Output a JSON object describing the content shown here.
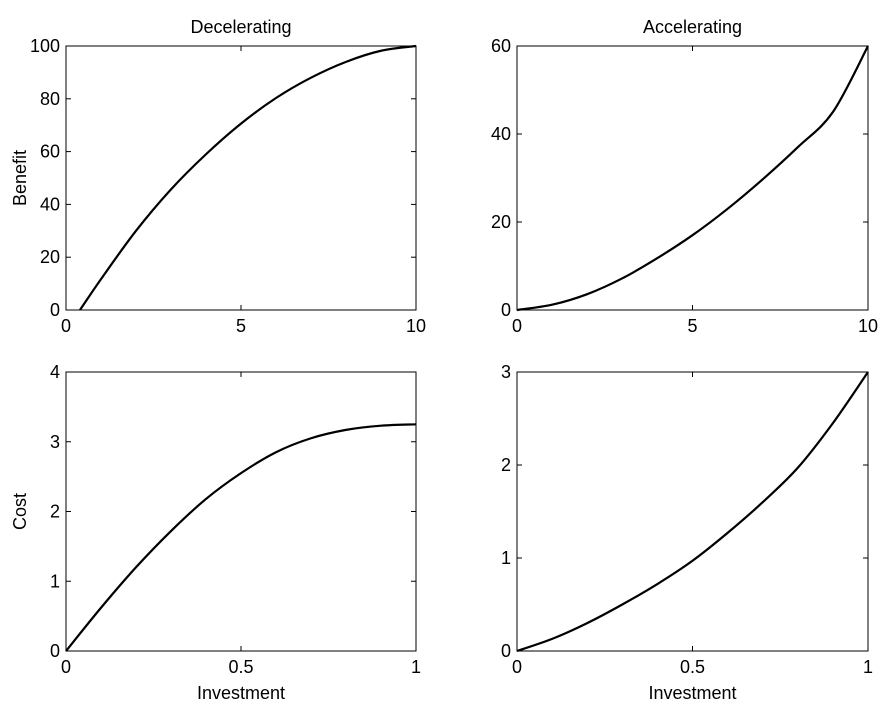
{
  "figure": {
    "background": "#ffffff",
    "line_color": "#000000"
  },
  "chart_data": [
    {
      "type": "line",
      "title": "Decelerating",
      "xlabel": "",
      "ylabel": "Benefit",
      "xlim": [
        0,
        10
      ],
      "ylim": [
        0,
        100
      ],
      "xticks": [
        0,
        5,
        10
      ],
      "xtick_labels": [
        "0",
        "5",
        "10"
      ],
      "yticks": [
        0,
        20,
        40,
        60,
        80,
        100
      ],
      "ytick_labels": [
        "0",
        "20",
        "40",
        "60",
        "80",
        "100"
      ],
      "grid": false,
      "series": [
        {
          "x": [
            0.4,
            1,
            2,
            3,
            4,
            5,
            6,
            7,
            8,
            9,
            10
          ],
          "y": [
            0,
            11.7,
            30,
            45.7,
            59,
            70.6,
            80.3,
            88,
            94,
            98.2,
            100
          ]
        }
      ]
    },
    {
      "type": "line",
      "title": "Accelerating",
      "xlabel": "",
      "ylabel": "",
      "xlim": [
        0,
        10
      ],
      "ylim": [
        0,
        60
      ],
      "xticks": [
        0,
        5,
        10
      ],
      "xtick_labels": [
        "0",
        "5",
        "10"
      ],
      "yticks": [
        0,
        20,
        40,
        60
      ],
      "ytick_labels": [
        "0",
        "20",
        "40",
        "60"
      ],
      "grid": false,
      "series": [
        {
          "x": [
            0,
            1,
            2,
            3,
            4,
            5,
            6,
            7,
            8,
            9,
            10
          ],
          "y": [
            0,
            1.2,
            3.6,
            7.2,
            11.8,
            17,
            23,
            29.7,
            37,
            45,
            60
          ]
        }
      ]
    },
    {
      "type": "line",
      "title": "",
      "xlabel": "Investment",
      "ylabel": "Cost",
      "xlim": [
        0,
        1
      ],
      "ylim": [
        0,
        4
      ],
      "xticks": [
        0,
        0.5,
        1
      ],
      "xtick_labels": [
        "0",
        "0.5",
        "1"
      ],
      "yticks": [
        0,
        1,
        2,
        3,
        4
      ],
      "ytick_labels": [
        "0",
        "1",
        "2",
        "3",
        "4"
      ],
      "grid": false,
      "series": [
        {
          "x": [
            0,
            0.1,
            0.2,
            0.3,
            0.4,
            0.5,
            0.6,
            0.7,
            0.8,
            0.9,
            1
          ],
          "y": [
            0,
            0.62,
            1.2,
            1.72,
            2.18,
            2.55,
            2.85,
            3.05,
            3.17,
            3.23,
            3.25
          ]
        }
      ]
    },
    {
      "type": "line",
      "title": "",
      "xlabel": "Investment",
      "ylabel": "",
      "xlim": [
        0,
        1
      ],
      "ylim": [
        0,
        3
      ],
      "xticks": [
        0,
        0.5,
        1
      ],
      "xtick_labels": [
        "0",
        "0.5",
        "1"
      ],
      "yticks": [
        0,
        1,
        2,
        3
      ],
      "ytick_labels": [
        "0",
        "1",
        "2",
        "3"
      ],
      "grid": false,
      "series": [
        {
          "x": [
            0,
            0.1,
            0.2,
            0.3,
            0.4,
            0.5,
            0.6,
            0.7,
            0.8,
            0.9,
            1
          ],
          "y": [
            0,
            0.13,
            0.3,
            0.5,
            0.72,
            0.97,
            1.27,
            1.6,
            1.97,
            2.45,
            3
          ]
        }
      ]
    }
  ]
}
